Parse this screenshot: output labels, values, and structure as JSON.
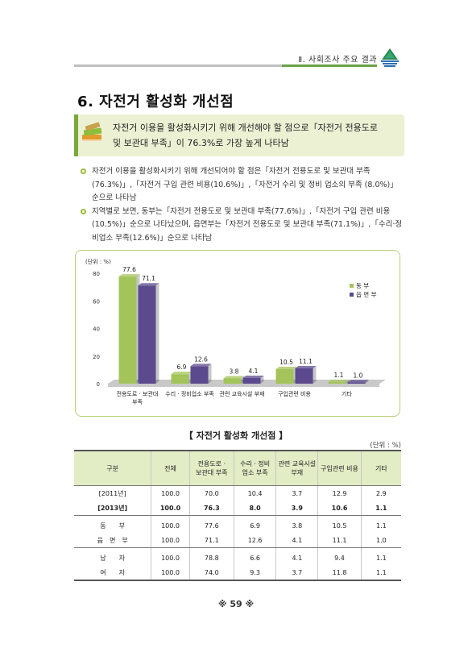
{
  "header": {
    "text": "Ⅱ. 사회조사 주요 결과"
  },
  "section_title": "6. 자전거 활성화 개선점",
  "summary": {
    "line1": "자전거 이용을 활성화시키기 위해 개선해야 할 점으로「자전거 전용도로",
    "line2": "및 보관대 부족」이 76.3%로 가장 높게 나타남"
  },
  "bullets": [
    "자전거 이용을 활성화시키기 위해 개선되어야 할 점은「자전거 전용도로 및 보관대 부족 (76.3%)」,「자전거 구입 관련 비용(10.6%)」,「자전거 수리 및 정비 업소의 부족 (8.0%)」순으로 나타남",
    "지역별로 보면, 동부는「자전거 전용도로 및 보관대 부족(77.6%)」,「자전거 구입 관련 비용(10.5%)」순으로 나타났으며, 읍면부는「자전거 전용도로 및 보관대 부족(71.1%)」,「수리·정비업소 부족(12.6%)」순으로 나타남"
  ],
  "chart_data": {
    "type": "bar",
    "unit_label": "(단위 : %)",
    "categories": [
      "전용도로 · 보관대\n부족",
      "수리 · 정비업소 부족",
      "관련 교육시설 부재",
      "구입관련 비용",
      "기타"
    ],
    "series": [
      {
        "name": "동 부",
        "values": [
          77.6,
          6.9,
          3.8,
          10.5,
          1.1
        ],
        "color": "#a3c45a"
      },
      {
        "name": "읍 면 부",
        "values": [
          71.1,
          12.6,
          4.1,
          11.1,
          1.0
        ],
        "color": "#5b4a8e"
      }
    ],
    "yticks": [
      0,
      20,
      40,
      60,
      80
    ],
    "ylim": [
      0,
      80
    ],
    "legend": "right"
  },
  "table": {
    "title": "【 자전거 활성화 개선점 】",
    "unit": "(단위 : %)",
    "headers": [
      "구분",
      "전체",
      "전용도로 ·\n보관대 부족",
      "수리 · 정비\n업소 부족",
      "관련 교육시설\n부재",
      "구입관련 비용",
      "기타"
    ],
    "rows": [
      [
        "[2011년]",
        "100.0",
        "70.0",
        "10.4",
        "3.7",
        "12.9",
        "2.9"
      ],
      [
        "[2013년]",
        "100.0",
        "76.3",
        "8.0",
        "3.9",
        "10.6",
        "1.1"
      ],
      [
        "동　　부",
        "100.0",
        "77.6",
        "6.9",
        "3.8",
        "10.5",
        "1.1"
      ],
      [
        "읍　면　부",
        "100.0",
        "71.1",
        "12.6",
        "4.1",
        "11.1",
        "1.0"
      ],
      [
        "남　　자",
        "100.0",
        "78.8",
        "6.6",
        "4.1",
        "9.4",
        "1.1"
      ],
      [
        "여　　자",
        "100.0",
        "74.0",
        "9.3",
        "3.7",
        "11.8",
        "1.1"
      ]
    ]
  },
  "page_number": "※ 59 ※"
}
